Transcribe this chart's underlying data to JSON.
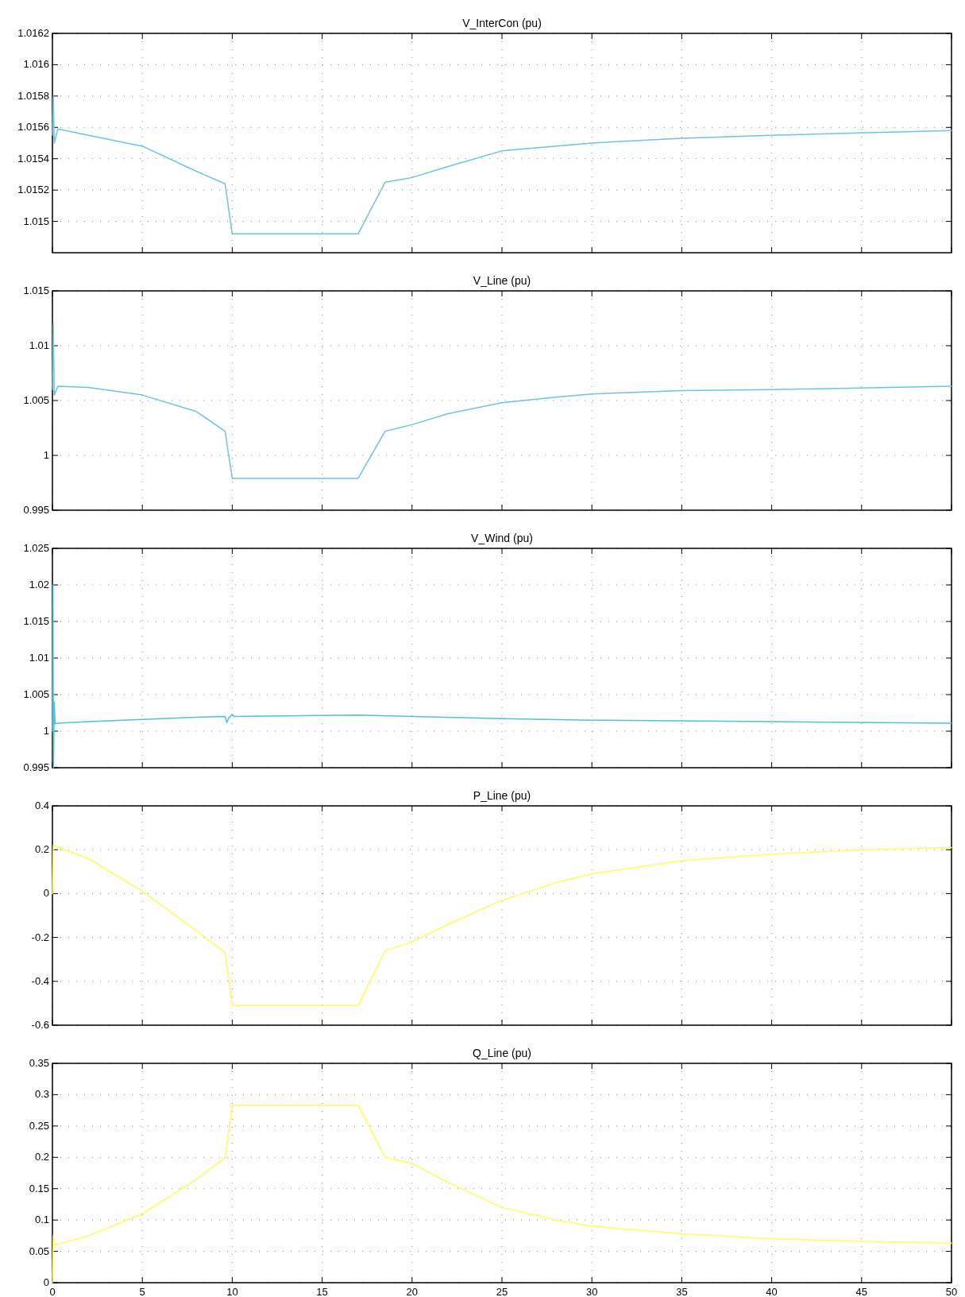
{
  "chart_data": [
    {
      "type": "line",
      "title": "V_InterCon (pu)",
      "xlim": [
        0,
        50
      ],
      "xticks": [
        0,
        5,
        10,
        15,
        20,
        25,
        30,
        35,
        40,
        45,
        50
      ],
      "ylim": [
        1.0148,
        1.0162
      ],
      "yticks": [
        1.015,
        1.0152,
        1.0154,
        1.0156,
        1.0158,
        1.016,
        1.0162
      ],
      "grid": true,
      "tick_labels": "y",
      "series": [
        {
          "color": "#6ec3e4",
          "x": [
            0,
            0.05,
            0.1,
            0.3,
            2,
            5,
            8,
            9.6,
            10,
            17,
            18.5,
            20,
            22,
            25,
            30,
            35,
            40,
            50
          ],
          "values": [
            1.01555,
            1.0158,
            1.0155,
            1.01559,
            1.01555,
            1.01548,
            1.01532,
            1.01524,
            1.01492,
            1.01492,
            1.01525,
            1.01528,
            1.01535,
            1.01545,
            1.0155,
            1.01553,
            1.01555,
            1.01558
          ]
        }
      ]
    },
    {
      "type": "line",
      "title": "V_Line (pu)",
      "xlim": [
        0,
        50
      ],
      "xticks": [
        0,
        5,
        10,
        15,
        20,
        25,
        30,
        35,
        40,
        45,
        50
      ],
      "ylim": [
        0.995,
        1.015
      ],
      "yticks": [
        0.995,
        1,
        1.005,
        1.01,
        1.015
      ],
      "grid": true,
      "tick_labels": "y",
      "series": [
        {
          "color": "#6ec3e4",
          "x": [
            0,
            0.05,
            0.1,
            0.3,
            2,
            5,
            8,
            9.6,
            10,
            17,
            18.5,
            20,
            22,
            25,
            28,
            30,
            35,
            40,
            50
          ],
          "values": [
            1.006,
            1.012,
            1.0055,
            1.0063,
            1.0062,
            1.0055,
            1.004,
            1.0022,
            0.9979,
            0.9979,
            1.0022,
            1.0028,
            1.0038,
            1.0048,
            1.0053,
            1.0056,
            1.0059,
            1.006,
            1.0063
          ]
        }
      ]
    },
    {
      "type": "line",
      "title": "V_Wind (pu)",
      "xlim": [
        0,
        50
      ],
      "xticks": [
        0,
        5,
        10,
        15,
        20,
        25,
        30,
        35,
        40,
        45,
        50
      ],
      "ylim": [
        0.995,
        1.025
      ],
      "yticks": [
        0.995,
        1,
        1.005,
        1.01,
        1.015,
        1.02,
        1.025
      ],
      "grid": true,
      "tick_labels": "y",
      "series": [
        {
          "color": "#4fc0e0",
          "x": [
            0,
            0.03,
            0.06,
            0.1,
            0.15,
            0.3,
            2,
            5,
            8,
            9.6,
            9.7,
            9.8,
            10,
            10.1,
            17,
            20,
            25,
            30,
            40,
            50
          ],
          "values": [
            1.0,
            1.02,
            0.995,
            1.004,
            1.001,
            1.0011,
            1.0013,
            1.0016,
            1.0019,
            1.002,
            1.0012,
            1.0018,
            1.0023,
            1.002,
            1.0022,
            1.002,
            1.0017,
            1.0015,
            1.0013,
            1.0011
          ]
        }
      ]
    },
    {
      "type": "line",
      "title": "P_Line (pu)",
      "xlim": [
        0,
        50
      ],
      "xticks": [
        0,
        5,
        10,
        15,
        20,
        25,
        30,
        35,
        40,
        45,
        50
      ],
      "ylim": [
        -0.6,
        0.4
      ],
      "yticks": [
        -0.6,
        -0.4,
        -0.2,
        0,
        0.2,
        0.4
      ],
      "grid": true,
      "tick_labels": "y",
      "series": [
        {
          "color": "#ffff55",
          "x": [
            0,
            0.05,
            2,
            5,
            8,
            9.6,
            10,
            17,
            18.5,
            20,
            22,
            25,
            28,
            30,
            35,
            40,
            45,
            50
          ],
          "values": [
            0.0,
            0.22,
            0.16,
            0.01,
            -0.17,
            -0.27,
            -0.51,
            -0.51,
            -0.26,
            -0.22,
            -0.14,
            -0.03,
            0.05,
            0.09,
            0.15,
            0.18,
            0.2,
            0.21
          ]
        }
      ]
    },
    {
      "type": "line",
      "title": "Q_Line (pu)",
      "xlim": [
        0,
        50
      ],
      "xticks": [
        0,
        5,
        10,
        15,
        20,
        25,
        30,
        35,
        40,
        45,
        50
      ],
      "ylim": [
        0,
        0.35
      ],
      "yticks": [
        0,
        0.05,
        0.1,
        0.15,
        0.2,
        0.25,
        0.3,
        0.35
      ],
      "grid": true,
      "series": [
        {
          "color": "#ffff55",
          "x": [
            0,
            0.05,
            0.1,
            2,
            5,
            8,
            9.6,
            10,
            17,
            18.5,
            20,
            22,
            25,
            28,
            30,
            35,
            40,
            45,
            50
          ],
          "values": [
            0.0,
            0.075,
            0.06,
            0.075,
            0.11,
            0.165,
            0.2,
            0.283,
            0.283,
            0.2,
            0.19,
            0.16,
            0.12,
            0.1,
            0.09,
            0.078,
            0.07,
            0.066,
            0.063
          ]
        }
      ]
    }
  ]
}
